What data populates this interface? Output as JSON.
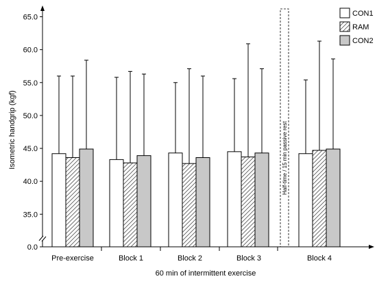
{
  "chart_data": {
    "type": "bar",
    "xlabel": "60 min of intermittent exercise",
    "ylabel": "Isometric handgrip (kgf)",
    "ylim": [
      0,
      65
    ],
    "yticks": [
      "0.0",
      "35.0",
      "40.0",
      "45.0",
      "50.0",
      "55.0",
      "60.0",
      "65.0"
    ],
    "axis_break": true,
    "categories": [
      "Pre-exercise",
      "Block 1",
      "Block 2",
      "Block 3",
      "Block 4"
    ],
    "series": [
      {
        "name": "CON1",
        "pattern": "white",
        "values": [
          44.2,
          43.3,
          44.3,
          44.5,
          44.2
        ],
        "sd_upper": [
          56.0,
          55.8,
          55.0,
          55.6,
          55.4
        ]
      },
      {
        "name": "RAM",
        "pattern": "hatched",
        "values": [
          43.6,
          42.8,
          42.7,
          43.7,
          44.7
        ],
        "sd_upper": [
          56.0,
          56.7,
          57.1,
          60.9,
          61.3
        ]
      },
      {
        "name": "CON2",
        "pattern": "gray",
        "values": [
          44.9,
          43.9,
          43.6,
          44.3,
          44.9
        ],
        "sd_upper": [
          58.4,
          56.3,
          56.0,
          57.1,
          58.6
        ]
      }
    ],
    "annotation": "Half-time / 15 min passive rest",
    "legend_position": "top-right",
    "grid": false,
    "colors": {
      "CON1": "#ffffff",
      "RAM": "#ffffff",
      "CON2": "#c8c8c8",
      "stroke": "#000000",
      "hatch": "#555555"
    }
  }
}
